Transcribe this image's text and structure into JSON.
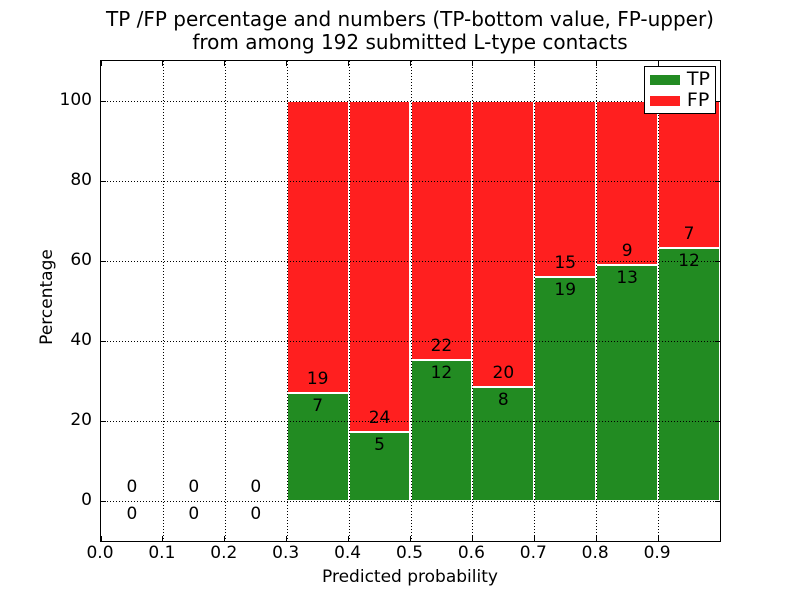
{
  "chart_data": {
    "type": "bar",
    "subtype": "stacked-percentage-histogram",
    "title": "TP /FP percentage and numbers (TP-bottom value, FP-upper)\nfrom among 192 submitted L-type contacts",
    "title_lines": [
      "TP /FP percentage and numbers (TP-bottom value, FP-upper)",
      "from among 192 submitted L-type contacts"
    ],
    "xlabel": "Predicted probability",
    "ylabel": "Percentage",
    "xlim": [
      0.0,
      1.0
    ],
    "ylim": [
      -10,
      110
    ],
    "bin_width": 0.1,
    "grid": "dotted",
    "xticks": {
      "values": [
        0.0,
        0.1,
        0.2,
        0.3,
        0.4,
        0.5,
        0.6,
        0.7,
        0.8,
        0.9
      ],
      "labels": [
        "0.0",
        "0.1",
        "0.2",
        "0.3",
        "0.4",
        "0.5",
        "0.6",
        "0.7",
        "0.8",
        "0.9"
      ]
    },
    "yticks": {
      "values": [
        0,
        20,
        40,
        60,
        80,
        100
      ],
      "labels": [
        "0",
        "20",
        "40",
        "60",
        "80",
        "100"
      ]
    },
    "series": [
      {
        "name": "TP",
        "color": "#228b22"
      },
      {
        "name": "FP",
        "color": "#ff1f1f"
      }
    ],
    "bins": [
      {
        "x_start": 0.0,
        "tp": 0,
        "fp": 0,
        "tp_pct": 0
      },
      {
        "x_start": 0.1,
        "tp": 0,
        "fp": 0,
        "tp_pct": 0
      },
      {
        "x_start": 0.2,
        "tp": 0,
        "fp": 0,
        "tp_pct": 0
      },
      {
        "x_start": 0.3,
        "tp": 7,
        "fp": 19,
        "tp_pct": 26.92
      },
      {
        "x_start": 0.4,
        "tp": 5,
        "fp": 24,
        "tp_pct": 17.24
      },
      {
        "x_start": 0.5,
        "tp": 12,
        "fp": 22,
        "tp_pct": 35.29
      },
      {
        "x_start": 0.6,
        "tp": 8,
        "fp": 20,
        "tp_pct": 28.57
      },
      {
        "x_start": 0.7,
        "tp": 19,
        "fp": 15,
        "tp_pct": 55.88
      },
      {
        "x_start": 0.8,
        "tp": 13,
        "fp": 9,
        "tp_pct": 59.09
      },
      {
        "x_start": 0.9,
        "tp": 12,
        "fp": 7,
        "tp_pct": 63.16
      }
    ],
    "legend": {
      "position": "upper-right",
      "entries": [
        {
          "label": "TP",
          "color": "#228b22"
        },
        {
          "label": "FP",
          "color": "#ff1f1f"
        }
      ]
    }
  }
}
